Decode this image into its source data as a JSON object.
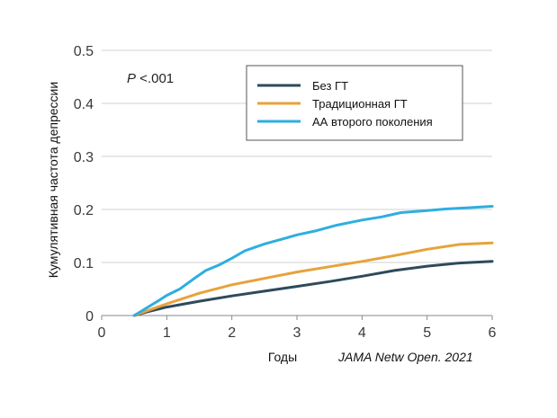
{
  "chart_data": {
    "type": "line",
    "ylabel": "Кумулятивная частота депрессии",
    "xlabel": "Годы",
    "annotation_p_italic": "P",
    "annotation_p_rest": " <.001",
    "citation": "JAMA Netw Open. 2021",
    "xlim": [
      0,
      6
    ],
    "ylim": [
      0,
      0.5
    ],
    "x_ticks": [
      "0",
      "1",
      "2",
      "3",
      "4",
      "5",
      "6"
    ],
    "y_ticks": [
      "0",
      "0.1",
      "0.2",
      "0.3",
      "0.4",
      "0.5"
    ],
    "grid": "horizontal",
    "legend_position": "top-right",
    "series": [
      {
        "name": "Без ГТ",
        "color": "#2e4a5c",
        "x": [
          0.5,
          0.7,
          1.0,
          1.5,
          2.0,
          2.5,
          3.0,
          3.5,
          4.0,
          4.5,
          5.0,
          5.5,
          6.0
        ],
        "y": [
          0.0,
          0.007,
          0.016,
          0.027,
          0.037,
          0.046,
          0.055,
          0.064,
          0.074,
          0.085,
          0.093,
          0.099,
          0.102
        ]
      },
      {
        "name": "Традиционная ГТ",
        "color": "#e8a23a",
        "x": [
          0.5,
          0.7,
          1.0,
          1.5,
          2.0,
          2.5,
          3.0,
          3.5,
          4.0,
          4.5,
          5.0,
          5.5,
          6.0
        ],
        "y": [
          0.0,
          0.009,
          0.022,
          0.042,
          0.058,
          0.07,
          0.082,
          0.092,
          0.102,
          0.113,
          0.125,
          0.134,
          0.137
        ]
      },
      {
        "name": "АА второго поколения",
        "color": "#2eaee0",
        "x": [
          0.5,
          0.7,
          0.9,
          1.0,
          1.2,
          1.4,
          1.6,
          1.8,
          2.0,
          2.2,
          2.5,
          2.8,
          3.0,
          3.3,
          3.6,
          4.0,
          4.3,
          4.6,
          5.0,
          5.3,
          5.6,
          6.0
        ],
        "y": [
          0.0,
          0.015,
          0.03,
          0.038,
          0.05,
          0.068,
          0.085,
          0.095,
          0.108,
          0.122,
          0.135,
          0.145,
          0.152,
          0.16,
          0.17,
          0.18,
          0.186,
          0.194,
          0.198,
          0.201,
          0.203,
          0.206
        ]
      }
    ]
  }
}
